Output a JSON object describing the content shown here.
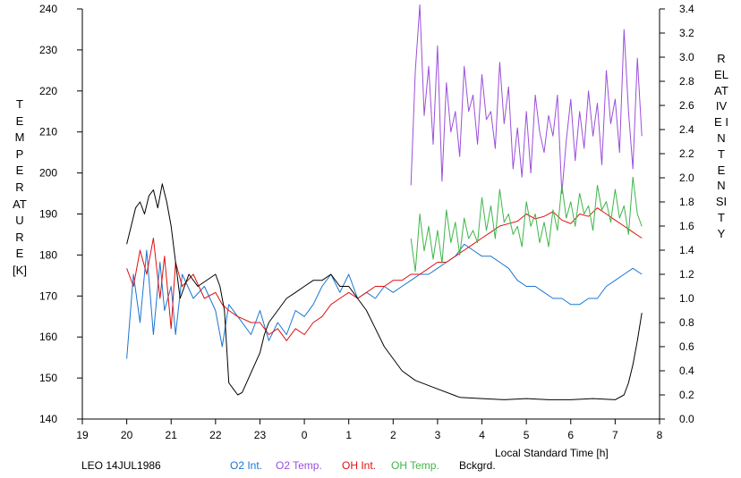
{
  "chart_data": {
    "type": "line",
    "xlabel": "Local Standard Time [h]",
    "x_axis": {
      "range": [
        19,
        32
      ],
      "ticks": [
        19,
        20,
        21,
        22,
        23,
        24,
        25,
        26,
        27,
        28,
        29,
        30,
        31,
        32
      ],
      "tick_labels": [
        "19",
        "20",
        "21",
        "22",
        "23",
        "0",
        "1",
        "2",
        "3",
        "4",
        "5",
        "6",
        "7",
        "8"
      ]
    },
    "y_left": {
      "label": "TEMPERATURE",
      "unit": "[K]",
      "range": [
        140,
        240
      ],
      "ticks": [
        140,
        150,
        160,
        170,
        180,
        190,
        200,
        210,
        220,
        230,
        240
      ]
    },
    "y_right": {
      "label": "RELATIVE INTENSITY",
      "range": [
        0.0,
        3.4
      ],
      "ticks": [
        "0.0",
        "0.2",
        "0.4",
        "0.6",
        "0.8",
        "1.0",
        "1.2",
        "1.4",
        "1.6",
        "1.8",
        "2.0",
        "2.2",
        "2.4",
        "2.6",
        "2.8",
        "3.0",
        "3.2",
        "3.4"
      ]
    },
    "grid": false,
    "legend_placement": "bottom",
    "footer_title": "LEO 14JUL1986",
    "series": [
      {
        "name": "O2 Int.",
        "color": "#1a75d1",
        "axis": "right",
        "x": [
          20.0,
          20.15,
          20.3,
          20.45,
          20.6,
          20.75,
          20.85,
          21.0,
          21.1,
          21.25,
          21.5,
          21.75,
          22.0,
          22.15,
          22.3,
          22.5,
          22.8,
          23.0,
          23.2,
          23.4,
          23.6,
          23.8,
          24.0,
          24.2,
          24.4,
          24.6,
          24.8,
          25.0,
          25.2,
          25.4,
          25.6,
          25.8,
          26.0,
          26.2,
          26.4,
          26.6,
          26.8,
          27.0,
          27.2,
          27.4,
          27.6,
          27.8,
          28.0,
          28.2,
          28.4,
          28.6,
          28.8,
          29.0,
          29.2,
          29.4,
          29.6,
          29.8,
          30.0,
          30.2,
          30.4,
          30.6,
          30.8,
          31.0,
          31.2,
          31.4,
          31.6
        ],
        "y": [
          0.5,
          1.2,
          0.8,
          1.4,
          0.7,
          1.3,
          0.9,
          1.1,
          0.7,
          1.2,
          1.0,
          1.1,
          0.9,
          0.6,
          0.95,
          0.85,
          0.7,
          0.9,
          0.65,
          0.8,
          0.7,
          0.9,
          0.85,
          0.95,
          1.1,
          1.2,
          1.05,
          1.2,
          1.0,
          1.05,
          1.0,
          1.1,
          1.05,
          1.1,
          1.15,
          1.2,
          1.2,
          1.25,
          1.3,
          1.35,
          1.45,
          1.4,
          1.35,
          1.35,
          1.3,
          1.25,
          1.15,
          1.1,
          1.1,
          1.05,
          1.0,
          1.0,
          0.95,
          0.95,
          1.0,
          1.0,
          1.1,
          1.15,
          1.2,
          1.25,
          1.2
        ]
      },
      {
        "name": "O2 Temp.",
        "color": "#9b4fd9",
        "axis": "left",
        "x": [
          26.4,
          26.5,
          26.6,
          26.7,
          26.8,
          26.9,
          27.0,
          27.1,
          27.2,
          27.3,
          27.4,
          27.5,
          27.6,
          27.7,
          27.8,
          27.9,
          28.0,
          28.1,
          28.2,
          28.3,
          28.4,
          28.5,
          28.6,
          28.7,
          28.8,
          28.9,
          29.0,
          29.1,
          29.2,
          29.3,
          29.4,
          29.5,
          29.6,
          29.7,
          29.8,
          29.9,
          30.0,
          30.1,
          30.2,
          30.3,
          30.4,
          30.5,
          30.6,
          30.7,
          30.8,
          30.9,
          31.0,
          31.1,
          31.2,
          31.3,
          31.4,
          31.5,
          31.6
        ],
        "y": [
          197,
          225,
          241,
          214,
          226,
          207,
          231,
          198,
          222,
          210,
          215,
          204,
          226,
          215,
          219,
          207,
          224,
          213,
          215,
          206,
          227,
          212,
          221,
          201,
          211,
          199,
          215,
          200,
          219,
          210,
          205,
          214,
          209,
          219,
          195,
          208,
          218,
          203,
          215,
          206,
          220,
          209,
          217,
          202,
          225,
          212,
          218,
          205,
          235,
          215,
          201,
          228,
          209
        ]
      },
      {
        "name": "OH Int.",
        "color": "#e01010",
        "axis": "right",
        "x": [
          20.0,
          20.15,
          20.3,
          20.45,
          20.6,
          20.75,
          20.85,
          21.0,
          21.1,
          21.25,
          21.5,
          21.75,
          22.0,
          22.15,
          22.3,
          22.5,
          22.8,
          23.0,
          23.2,
          23.4,
          23.6,
          23.8,
          24.0,
          24.2,
          24.4,
          24.6,
          24.8,
          25.0,
          25.2,
          25.4,
          25.6,
          25.8,
          26.0,
          26.2,
          26.4,
          26.6,
          26.8,
          27.0,
          27.2,
          27.4,
          27.6,
          27.8,
          28.0,
          28.2,
          28.4,
          28.6,
          28.8,
          29.0,
          29.2,
          29.4,
          29.6,
          29.8,
          30.0,
          30.2,
          30.4,
          30.6,
          30.8,
          31.0,
          31.2,
          31.4,
          31.6
        ],
        "y": [
          1.25,
          1.1,
          1.4,
          1.2,
          1.5,
          1.0,
          1.35,
          0.75,
          1.3,
          1.1,
          1.2,
          1.0,
          1.05,
          0.95,
          0.9,
          0.85,
          0.8,
          0.8,
          0.7,
          0.75,
          0.65,
          0.75,
          0.7,
          0.8,
          0.85,
          0.95,
          1.0,
          1.05,
          1.0,
          1.05,
          1.1,
          1.1,
          1.15,
          1.15,
          1.2,
          1.2,
          1.25,
          1.3,
          1.3,
          1.35,
          1.4,
          1.45,
          1.5,
          1.55,
          1.6,
          1.62,
          1.64,
          1.7,
          1.66,
          1.68,
          1.72,
          1.65,
          1.62,
          1.7,
          1.68,
          1.75,
          1.7,
          1.65,
          1.6,
          1.55,
          1.5
        ]
      },
      {
        "name": "OH Temp.",
        "color": "#3fb54a",
        "axis": "left",
        "x": [
          26.4,
          26.5,
          26.6,
          26.7,
          26.8,
          26.9,
          27.0,
          27.1,
          27.2,
          27.3,
          27.4,
          27.5,
          27.6,
          27.7,
          27.8,
          27.9,
          28.0,
          28.1,
          28.2,
          28.3,
          28.4,
          28.5,
          28.6,
          28.7,
          28.8,
          28.9,
          29.0,
          29.1,
          29.2,
          29.3,
          29.4,
          29.5,
          29.6,
          29.7,
          29.8,
          29.9,
          30.0,
          30.1,
          30.2,
          30.3,
          30.4,
          30.5,
          30.6,
          30.7,
          30.8,
          30.9,
          31.0,
          31.1,
          31.2,
          31.3,
          31.4,
          31.5,
          31.6
        ],
        "y": [
          184,
          176,
          190,
          181,
          187,
          179,
          186,
          178,
          191,
          183,
          188,
          180,
          189,
          184,
          186,
          183,
          194,
          186,
          192,
          184,
          196,
          188,
          190,
          185,
          187,
          182,
          193,
          187,
          190,
          183,
          188,
          182,
          191,
          186,
          197,
          189,
          193,
          187,
          195,
          190,
          192,
          186,
          197,
          191,
          193,
          188,
          196,
          189,
          192,
          185,
          199,
          190,
          187
        ]
      },
      {
        "name": "Bckgrd.",
        "color": "#000000",
        "axis": "right",
        "x": [
          20.0,
          20.1,
          20.2,
          20.3,
          20.4,
          20.5,
          20.6,
          20.7,
          20.8,
          20.9,
          21.0,
          21.1,
          21.2,
          21.4,
          21.6,
          22.0,
          22.1,
          22.2,
          22.3,
          22.4,
          22.5,
          22.6,
          23.0,
          23.1,
          23.2,
          23.4,
          23.6,
          23.8,
          24.0,
          24.2,
          24.4,
          24.6,
          24.8,
          25.0,
          25.2,
          25.4,
          25.6,
          25.8,
          26.0,
          26.2,
          26.5,
          27.0,
          27.5,
          28.0,
          28.5,
          29.0,
          29.5,
          30.0,
          30.5,
          31.0,
          31.2,
          31.3,
          31.4,
          31.5,
          31.6
        ],
        "y": [
          1.45,
          1.6,
          1.75,
          1.8,
          1.7,
          1.85,
          1.9,
          1.75,
          1.95,
          1.8,
          1.6,
          1.3,
          1.0,
          1.2,
          1.1,
          1.2,
          1.1,
          0.9,
          0.3,
          0.25,
          0.2,
          0.22,
          0.55,
          0.7,
          0.8,
          0.9,
          1.0,
          1.05,
          1.1,
          1.15,
          1.15,
          1.2,
          1.1,
          1.1,
          1.0,
          0.9,
          0.75,
          0.6,
          0.5,
          0.4,
          0.32,
          0.25,
          0.18,
          0.17,
          0.16,
          0.17,
          0.16,
          0.16,
          0.17,
          0.16,
          0.2,
          0.3,
          0.45,
          0.65,
          0.88
        ]
      }
    ]
  }
}
